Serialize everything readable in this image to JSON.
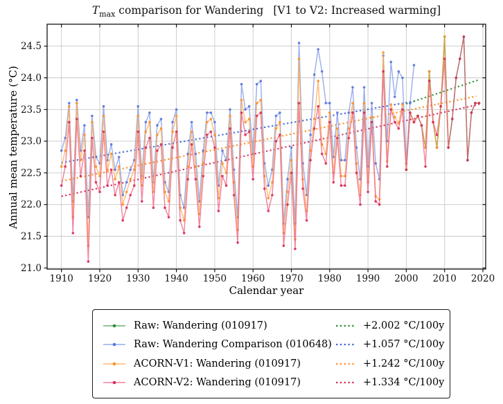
{
  "title": {
    "t_symbol": "T",
    "t_sub": "max",
    "main": " comparison for Wandering",
    "bracket": "[V1 to V2: Increased warming]"
  },
  "axes": {
    "xlabel": "Calendar year",
    "ylabel": "Annual mean temperature (°C)",
    "xticks": [
      1910,
      1920,
      1930,
      1940,
      1950,
      1960,
      1970,
      1980,
      1990,
      2000,
      2010,
      2020
    ],
    "yticks": [
      21.0,
      21.5,
      22.0,
      22.5,
      23.0,
      23.5,
      24.0,
      24.5
    ],
    "xlim": [
      1906.3,
      2020.7
    ],
    "ylim": [
      20.97,
      24.85
    ],
    "grid": true,
    "grid_color": "#c9c9c9"
  },
  "legend": {
    "position": "below-chart",
    "entries": [
      {
        "label": "Raw: Wandering (010917)",
        "rate": "+2.002 °C/100y"
      },
      {
        "label": "Raw: Wandering Comparison (010648)",
        "rate": "+1.057 °C/100y"
      },
      {
        "label": "ACORN-V1: Wandering (010917)",
        "rate": "+1.242 °C/100y"
      },
      {
        "label": "ACORN-V2: Wandering (010917)",
        "rate": "+1.334 °C/100y"
      }
    ]
  },
  "chart_data": {
    "type": "line",
    "title": "Tmax comparison for Wandering  [V1 to V2: Increased warming]",
    "xlabel": "Calendar year",
    "ylabel": "Annual mean temperature (°C)",
    "series": [
      {
        "name": "Raw: Wandering (010917)",
        "line_color": "#45a049",
        "marker_color": "#2f8f33",
        "line_alpha": 0.95,
        "start_year": 2000,
        "values": [
          22.55,
          23.45,
          23.3,
          23.4,
          23.25,
          22.9,
          24.1,
          23.3,
          22.9,
          23.55,
          24.65,
          22.9,
          23.35,
          24.0,
          24.3,
          24.65,
          22.7,
          23.45,
          23.6,
          23.6
        ]
      },
      {
        "name": "Raw: Wandering Comparison (010648)",
        "line_color": "#7e97e8",
        "marker_color": "#5a76d8",
        "line_alpha": 0.75,
        "start_year": 1910,
        "values": [
          22.85,
          23.05,
          23.6,
          22.05,
          23.65,
          22.85,
          23.25,
          21.8,
          23.4,
          22.75,
          22.65,
          23.55,
          22.7,
          22.95,
          22.55,
          22.75,
          22.15,
          22.35,
          22.55,
          22.7,
          23.55,
          22.45,
          23.3,
          23.45,
          22.35,
          23.25,
          23.35,
          22.35,
          22.2,
          23.3,
          23.5,
          22.15,
          21.95,
          22.8,
          23.3,
          22.8,
          22.05,
          22.85,
          23.45,
          23.45,
          23.3,
          22.3,
          22.85,
          22.7,
          23.5,
          22.55,
          21.8,
          23.9,
          23.5,
          23.55,
          22.8,
          23.9,
          23.95,
          22.65,
          22.3,
          22.55,
          23.4,
          23.45,
          21.7,
          22.4,
          22.9,
          21.7,
          24.55,
          22.65,
          22.15,
          23.1,
          24.05,
          24.45,
          24.1,
          23.6,
          23.6,
          22.75,
          23.45,
          22.7,
          22.7,
          23.45,
          23.85,
          22.9,
          22.4,
          23.85,
          22.6,
          23.6,
          22.65,
          22.4,
          24.35,
          23.0,
          24.25,
          23.7,
          24.1,
          24.0,
          22.65,
          23.6,
          24.2
        ]
      },
      {
        "name": "ACORN-V1: Wandering (010917)",
        "line_color": "#ffa84f",
        "marker_color": "#ff9022",
        "line_alpha": 0.75,
        "start_year": 1910,
        "values": [
          22.6,
          22.85,
          23.55,
          21.8,
          23.6,
          22.7,
          23.1,
          21.35,
          23.3,
          22.6,
          22.45,
          23.4,
          22.55,
          22.8,
          22.4,
          22.6,
          22.0,
          22.2,
          22.4,
          22.55,
          23.4,
          22.3,
          23.15,
          23.3,
          22.2,
          23.1,
          23.2,
          22.2,
          22.05,
          23.15,
          23.4,
          21.95,
          21.75,
          22.6,
          23.15,
          22.6,
          21.85,
          22.65,
          23.3,
          23.35,
          23.1,
          22.1,
          22.65,
          22.5,
          23.4,
          22.35,
          21.6,
          23.65,
          23.3,
          23.35,
          22.6,
          23.6,
          23.65,
          22.45,
          22.1,
          22.35,
          23.2,
          23.3,
          21.55,
          22.2,
          22.7,
          21.45,
          24.3,
          22.4,
          21.9,
          22.85,
          23.35,
          23.95,
          22.95,
          22.8,
          23.45,
          22.5,
          23.2,
          22.45,
          22.45,
          23.2,
          23.6,
          22.65,
          22.15,
          23.6,
          22.35,
          23.38,
          22.13,
          22.08,
          24.4,
          22.68,
          23.58,
          23.38,
          23.28,
          23.58,
          22.55,
          23.45,
          23.3,
          23.4,
          23.25,
          22.9,
          24.1,
          23.3,
          22.9,
          23.55,
          24.65,
          22.9
        ]
      },
      {
        "name": "ACORN-V2: Wandering (010917)",
        "line_color": "#ec5f80",
        "marker_color": "#d62e57",
        "line_alpha": 0.75,
        "start_year": 1910,
        "values": [
          22.3,
          22.6,
          23.3,
          21.55,
          23.35,
          22.45,
          22.85,
          21.1,
          23.05,
          22.35,
          22.2,
          23.15,
          22.3,
          22.55,
          22.15,
          22.35,
          21.75,
          21.95,
          22.15,
          22.3,
          23.15,
          22.05,
          22.9,
          23.05,
          21.95,
          22.85,
          22.95,
          21.95,
          21.8,
          22.9,
          23.15,
          21.75,
          21.55,
          22.4,
          22.95,
          22.4,
          21.65,
          22.45,
          23.1,
          23.15,
          22.9,
          21.9,
          22.45,
          22.3,
          23.2,
          22.15,
          21.4,
          23.45,
          23.1,
          23.15,
          22.4,
          23.4,
          23.45,
          22.25,
          21.9,
          22.15,
          23.0,
          23.1,
          21.35,
          22.0,
          22.5,
          21.3,
          23.6,
          22.25,
          21.75,
          22.7,
          23.2,
          23.55,
          22.8,
          22.65,
          23.3,
          22.35,
          23.05,
          22.3,
          22.3,
          23.05,
          23.45,
          22.5,
          22.0,
          23.45,
          22.2,
          23.3,
          22.05,
          22.0,
          24.1,
          22.6,
          23.5,
          23.3,
          23.2,
          23.5,
          22.55,
          23.45,
          23.3,
          23.4,
          23.25,
          22.6,
          23.95,
          23.3,
          23.1,
          23.55,
          24.3,
          22.9,
          23.35,
          24.0,
          24.3,
          24.65,
          22.7,
          23.45,
          23.6,
          23.6
        ]
      }
    ],
    "trend_lines": [
      {
        "name": "Raw: Wandering (010917)",
        "rate_c_per_100y": 2.002,
        "color": "#2f8f33",
        "x0": 2000,
        "t0": 23.59,
        "x1": 2019,
        "t1": 23.97
      },
      {
        "name": "Raw: Wandering Comparison (010648)",
        "rate_c_per_100y": 1.057,
        "color": "#4468d8",
        "x0": 1910,
        "t0": 22.66,
        "x1": 2002,
        "t1": 23.63
      },
      {
        "name": "ACORN-V1: Wandering (010917)",
        "rate_c_per_100y": 1.242,
        "color": "#ff9022",
        "x0": 1910,
        "t0": 22.37,
        "x1": 2018.3,
        "t1": 23.71
      },
      {
        "name": "ACORN-V2: Wandering (010917)",
        "rate_c_per_100y": 1.334,
        "color": "#d62e57",
        "x0": 1910,
        "t0": 22.13,
        "x1": 2019,
        "t1": 23.58
      }
    ]
  }
}
